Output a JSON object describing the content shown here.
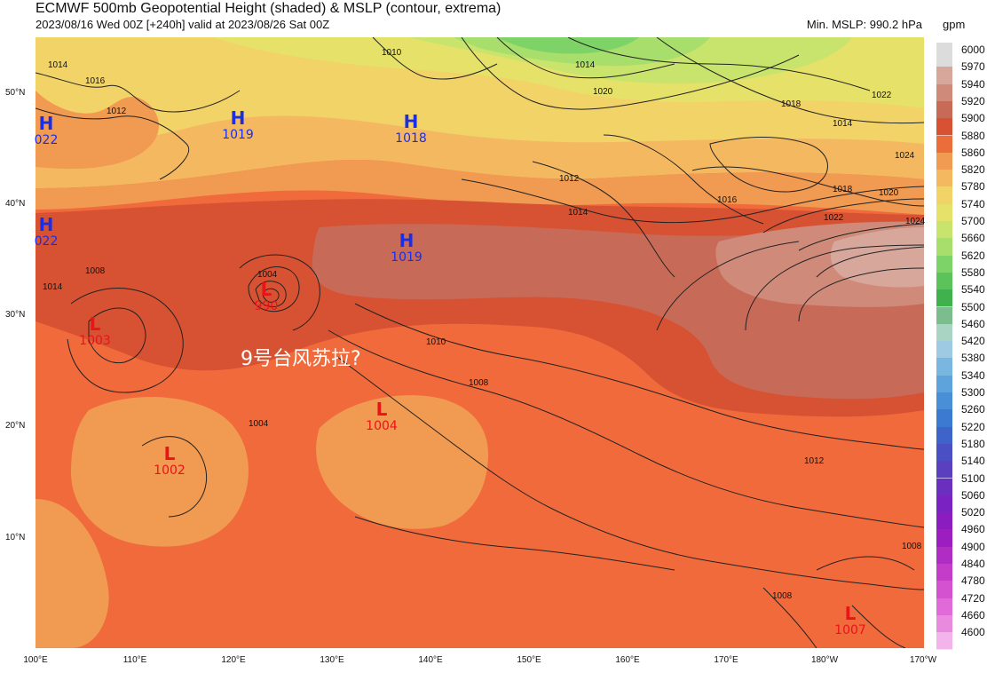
{
  "title": "ECMWF 500mb Geopotential Height (shaded) & MSLP (contour, extrema)",
  "subtitle": "2023/08/16 Wed 00Z [+240h] valid at 2023/08/26 Sat 00Z",
  "min_mslp": "Min. MSLP: 990.2 hPa",
  "units": "gpm",
  "annotation": "9号台风苏拉?",
  "lat_labels": [
    "50°N",
    "40°N",
    "30°N",
    "20°N",
    "10°N"
  ],
  "lon_labels": [
    "100°E",
    "110°E",
    "120°E",
    "130°E",
    "140°E",
    "150°E",
    "160°E",
    "170°E",
    "180°W",
    "170°W"
  ],
  "colorbar": {
    "levels": [
      "6000",
      "5970",
      "5940",
      "5920",
      "5900",
      "5880",
      "5860",
      "5820",
      "5780",
      "5740",
      "5700",
      "5660",
      "5620",
      "5580",
      "5540",
      "5500",
      "5460",
      "5420",
      "5380",
      "5340",
      "5300",
      "5260",
      "5220",
      "5180",
      "5140",
      "5100",
      "5060",
      "5020",
      "4960",
      "4900",
      "4840",
      "4780",
      "4720",
      "4660",
      "4600"
    ],
    "colors": [
      "#dcdcdc",
      "#d8a79c",
      "#cf8a7a",
      "#c86a58",
      "#d65232",
      "#ea6d3a",
      "#f19a52",
      "#f4b860",
      "#f2d368",
      "#e6e169",
      "#c9e46c",
      "#a7de6c",
      "#7dd367",
      "#5cc35a",
      "#3fb24d",
      "#7bbd8c",
      "#a9d4c4",
      "#9ecbe3",
      "#7ab7e0",
      "#5ea3dc",
      "#488fd8",
      "#3c7ad2",
      "#3e63c9",
      "#4a4fc3",
      "#5a3fbf",
      "#6a2fbf",
      "#7a22c2",
      "#8a1cc0",
      "#9c1ec0",
      "#b02dc3",
      "#c43dc8",
      "#d452cf",
      "#e06ad7",
      "#ea8ade",
      "#f2b4ea"
    ]
  },
  "pressure_systems": [
    {
      "type": "H",
      "value": "1019"
    },
    {
      "type": "H",
      "value": "1018"
    },
    {
      "type": "H",
      "value": "022"
    },
    {
      "type": "H",
      "value": "022"
    },
    {
      "type": "H",
      "value": "1019"
    },
    {
      "type": "L",
      "value": "990"
    },
    {
      "type": "L",
      "value": "1003"
    },
    {
      "type": "L",
      "value": "1004"
    },
    {
      "type": "L",
      "value": "1002"
    },
    {
      "type": "L",
      "value": "1007"
    }
  ],
  "isobar_labels": [
    "1014",
    "1016",
    "1012",
    "1010",
    "1014",
    "1020",
    "1022",
    "1018",
    "1014",
    "1024",
    "1012",
    "1014",
    "1016",
    "1018",
    "1020",
    "1022",
    "1024",
    "1004",
    "1008",
    "1010",
    "1008",
    "1012",
    "1008",
    "1008",
    "1014",
    "1004"
  ]
}
